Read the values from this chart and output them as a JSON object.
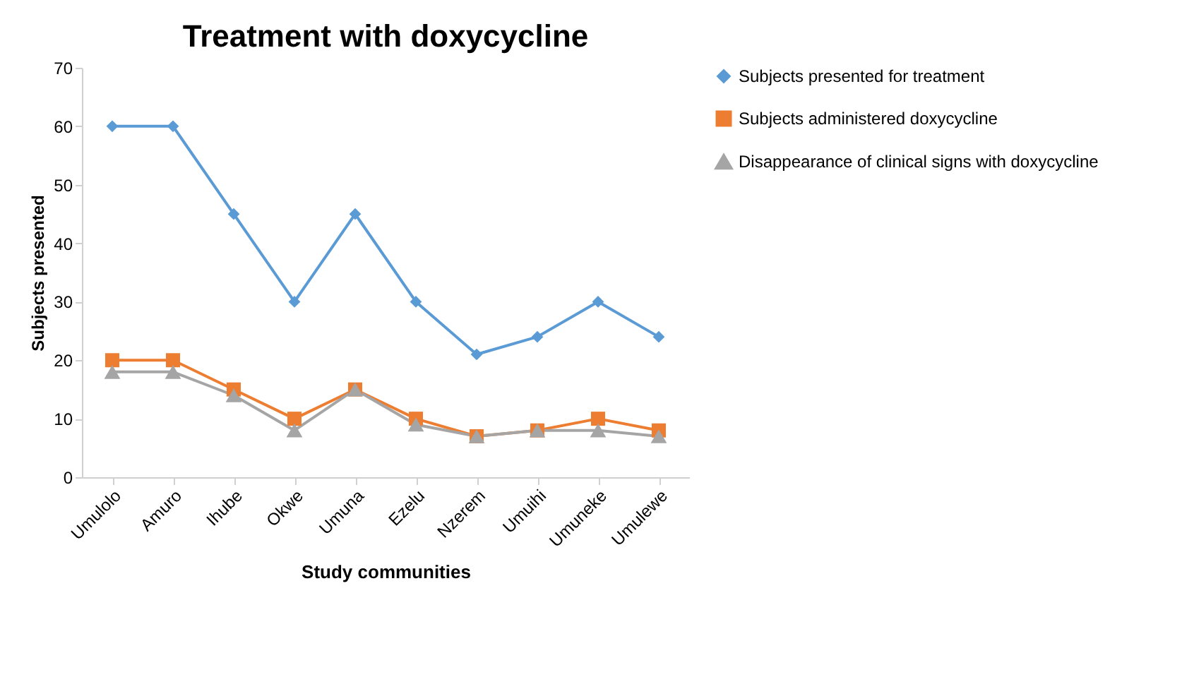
{
  "chart_data": {
    "type": "line",
    "title": "Treatment with doxycycline",
    "xlabel": "Study communities",
    "ylabel": "Subjects presented",
    "categories": [
      "Umulolo",
      "Amuro",
      "Ihube",
      "Okwe",
      "Umuna",
      "Ezelu",
      "Nzerem",
      "Umuihi",
      "Umuneke",
      "Umulewe"
    ],
    "series": [
      {
        "name": "Subjects presented for treatment",
        "color": "#5b9bd5",
        "marker": "diamond",
        "values": [
          60,
          60,
          45,
          30,
          45,
          30,
          21,
          24,
          30,
          24
        ]
      },
      {
        "name": "Subjects administered doxycycline",
        "color": "#ed7d31",
        "marker": "square",
        "values": [
          20,
          20,
          15,
          10,
          15,
          10,
          7,
          8,
          10,
          8
        ]
      },
      {
        "name": "Disappearance of clinical signs with doxycycline",
        "color": "#a5a5a5",
        "marker": "triangle",
        "values": [
          18,
          18,
          14,
          8,
          15,
          9,
          7,
          8,
          8,
          7
        ]
      }
    ],
    "ylim": [
      0,
      70
    ],
    "yticks": [
      0,
      10,
      20,
      30,
      40,
      50,
      60,
      70
    ],
    "grid": false,
    "legend": "right"
  }
}
